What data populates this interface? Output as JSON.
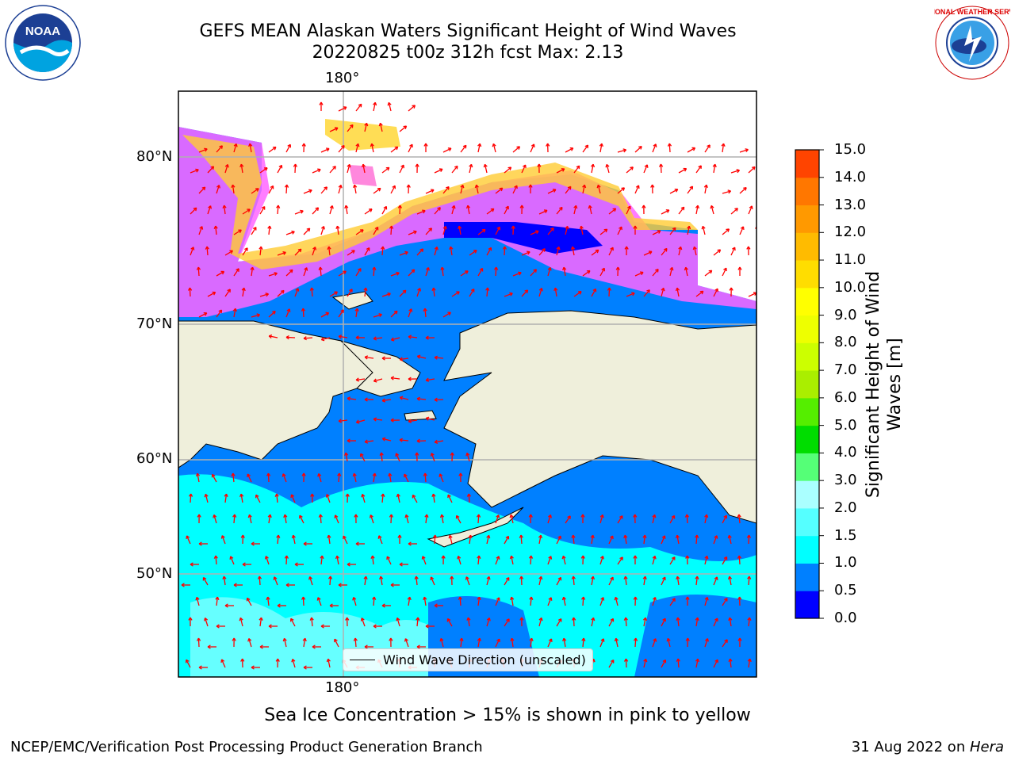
{
  "header": {
    "title_line1": "GEFS MEAN Alaskan Waters Significant Height of Wind Waves",
    "title_line2": "20220825 t00z 312h fcst   Max: 2.13"
  },
  "logos": {
    "noaa": {
      "text": "NOAA",
      "ring_text": "NATIONAL OCEANIC AND ATMOSPHERIC ADMINISTRATION · U.S. DEPARTMENT OF COMMERCE"
    },
    "nws": {
      "ring_text": "NATIONAL WEATHER SERVICE"
    }
  },
  "map": {
    "lon_labels": [
      "180°",
      "180°"
    ],
    "lat_labels": [
      "80°N",
      "70°N",
      "60°N",
      "50°N"
    ],
    "legend_text": "Wind Wave Direction (unscaled)",
    "colors": {
      "land": "#efefdb",
      "wave_0_0p5": "#0000ff",
      "wave_0p5_1": "#0080ff",
      "wave_1_1p5": "#00ffff",
      "wave_1p5_2": "#44ffff",
      "ice_low": "#ff66ff",
      "ice_mid": "#ffaadd",
      "ice_high": "#ffff55",
      "arrow": "#ff0000",
      "grid": "#b0b0b0"
    }
  },
  "colorbar": {
    "title": "Significant Height of Wind Waves [m]",
    "title_line1": "Significant Height of Wind",
    "title_line2": "Waves [m]",
    "ticks": [
      "15.0",
      "14.0",
      "13.0",
      "12.0",
      "11.0",
      "10.0",
      "9.0",
      "8.0",
      "7.0",
      "6.0",
      "5.0",
      "4.0",
      "3.0",
      "2.0",
      "1.5",
      "1.0",
      "0.5",
      "0.0"
    ],
    "colors": [
      "#0000ff",
      "#0080ff",
      "#00ffff",
      "#55ffff",
      "#aaffff",
      "#55ff77",
      "#00dd00",
      "#55ee00",
      "#aaee00",
      "#ccff00",
      "#eeff00",
      "#ffff00",
      "#ffdd00",
      "#ffbb00",
      "#ff9900",
      "#ff7700",
      "#ff4400",
      "#ff1100",
      "#ff0000"
    ]
  },
  "footer": {
    "note": "Sea Ice Concentration > 15% is shown in pink to yellow",
    "credit": "NCEP/EMC/Verification Post Processing Product Generation Branch",
    "date_prefix": "31 Aug 2022 on ",
    "date_host": "Hera"
  }
}
